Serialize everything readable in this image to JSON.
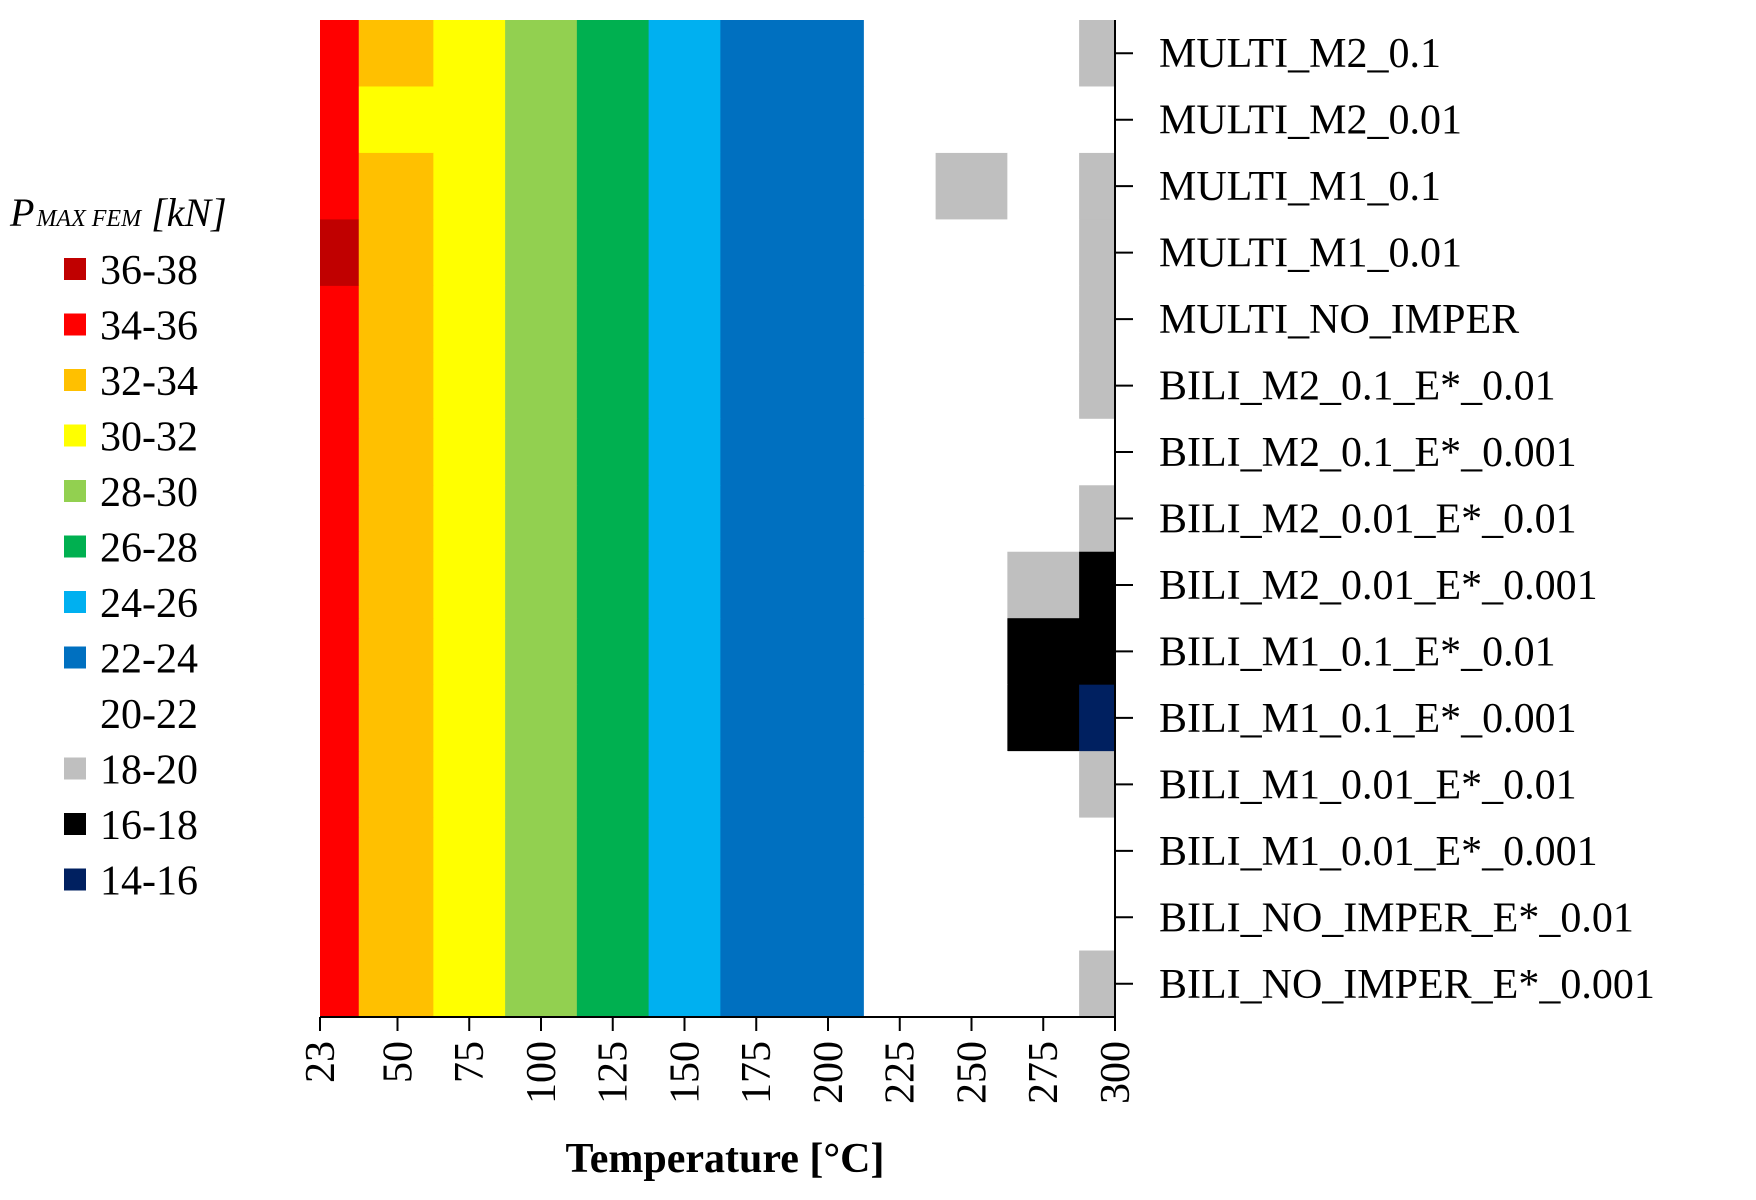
{
  "chart_data": {
    "type": "heatmap",
    "title": "",
    "xlabel": "Temperature [°C]",
    "ylabel": "",
    "x": [
      23,
      50,
      75,
      100,
      125,
      150,
      175,
      200,
      225,
      250,
      275,
      300
    ],
    "xlim": [
      23,
      300
    ],
    "y_categories": [
      "MULTI_M2_0.1",
      "MULTI_M2_0.01",
      "MULTI_M1_0.1",
      "MULTI_M1_0.01",
      "MULTI_NO_IMPER",
      "BILI_M2_0.1_E*_0.01",
      "BILI_M2_0.1_E*_0.001",
      "BILI_M2_0.01_E*_0.01",
      "BILI_M2_0.01_E*_0.001",
      "BILI_M1_0.1_E*_0.01",
      "BILI_M1_0.1_E*_0.001",
      "BILI_M1_0.01_E*_0.01",
      "BILI_M1_0.01_E*_0.001",
      "BILI_NO_IMPER_E*_0.01",
      "BILI_NO_IMPER_E*_0.001"
    ],
    "values": [
      [
        35,
        33,
        31,
        29,
        27,
        25,
        23,
        23,
        21,
        20.5,
        21,
        19.5
      ],
      [
        35,
        31,
        30,
        29,
        27,
        25,
        23,
        23,
        21,
        21,
        21,
        20.5
      ],
      [
        35,
        33,
        31,
        28,
        27,
        24.5,
        23,
        23,
        20,
        19.5,
        20,
        19.5
      ],
      [
        37,
        33,
        31,
        29,
        27,
        25,
        23,
        23,
        21,
        20.5,
        21,
        19
      ],
      [
        35,
        33,
        31,
        29,
        27,
        25,
        23,
        23,
        21,
        21,
        21,
        19
      ],
      [
        35,
        33,
        31,
        29,
        27,
        25,
        23,
        23,
        21,
        20.5,
        21,
        19
      ],
      [
        35,
        33,
        31,
        29,
        27,
        25,
        23,
        23,
        21,
        21,
        21,
        20
      ],
      [
        35,
        33,
        31,
        29,
        27,
        25,
        23,
        23,
        21,
        20.5,
        20,
        18.5
      ],
      [
        35,
        33,
        31,
        29,
        27,
        25,
        23,
        23,
        21,
        20,
        19,
        17
      ],
      [
        35,
        33,
        31,
        29,
        27,
        25,
        23,
        23,
        21,
        20,
        17,
        16.5
      ],
      [
        35,
        33,
        31,
        29,
        27,
        25,
        23,
        23,
        21,
        20,
        16.5,
        15
      ],
      [
        35,
        33,
        31,
        29,
        27,
        25,
        23,
        23,
        21,
        20.5,
        20.5,
        19
      ],
      [
        35,
        33,
        31,
        29,
        27,
        25,
        23,
        23,
        21,
        21,
        21,
        20
      ],
      [
        35,
        33,
        31,
        29,
        27,
        25,
        23,
        23,
        21,
        21,
        21,
        20
      ],
      [
        35,
        33,
        31,
        29,
        27,
        25,
        23,
        23,
        21,
        20.5,
        20.5,
        19
      ]
    ],
    "legend": {
      "title": "P",
      "title_subscript": "MAX FEM",
      "title_unit": " [kN]",
      "placement": "left",
      "entries": [
        {
          "label": "36-38",
          "min": 36,
          "max": 38,
          "color": "#c00000"
        },
        {
          "label": "34-36",
          "min": 34,
          "max": 36,
          "color": "#ff0000"
        },
        {
          "label": "32-34",
          "min": 32,
          "max": 34,
          "color": "#ffc000"
        },
        {
          "label": "30-32",
          "min": 30,
          "max": 32,
          "color": "#ffff00"
        },
        {
          "label": "28-30",
          "min": 28,
          "max": 30,
          "color": "#92d050"
        },
        {
          "label": "26-28",
          "min": 26,
          "max": 28,
          "color": "#00b050"
        },
        {
          "label": "24-26",
          "min": 24,
          "max": 26,
          "color": "#00b0f0"
        },
        {
          "label": "22-24",
          "min": 22,
          "max": 24,
          "color": "#0070c0"
        },
        {
          "label": "20-22",
          "min": 20,
          "max": 22,
          "color": "#ffffff"
        },
        {
          "label": "18-20",
          "min": 18,
          "max": 20,
          "color": "#bfbfbf"
        },
        {
          "label": "16-18",
          "min": 16,
          "max": 18,
          "color": "#000000"
        },
        {
          "label": "14-16",
          "min": 14,
          "max": 16,
          "color": "#002060"
        }
      ]
    },
    "grid": false
  }
}
